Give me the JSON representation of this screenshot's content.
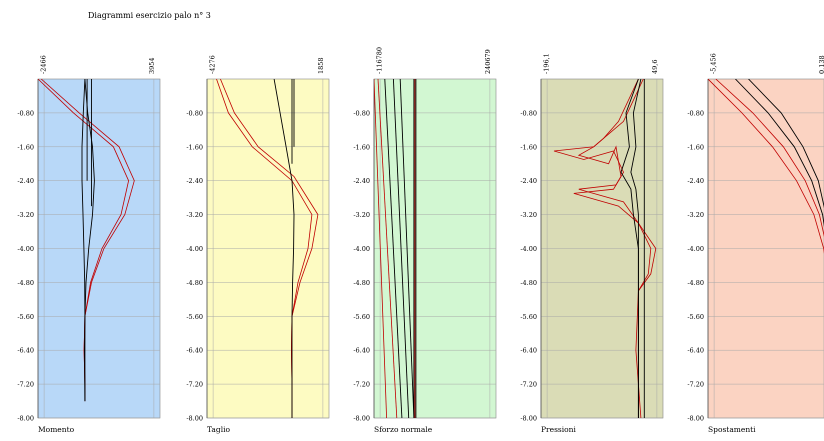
{
  "title": "Diagrammi esercizio palo n° 3",
  "chart_data": [
    {
      "type": "line",
      "xlabel": "Momento",
      "xtick_labels": [
        "-2466",
        "3954"
      ],
      "xlim": [
        -2466,
        3954
      ],
      "ylim": [
        0,
        -8.0
      ],
      "yticks": [
        "-0.80",
        "-1.60",
        "-2.40",
        "-3.20",
        "-4.00",
        "-4.80",
        "-5.60",
        "-6.40",
        "-7.20",
        "-8.00"
      ],
      "grid": true,
      "background": "#b8d8f8",
      "series": [
        {
          "color": "#c00000",
          "points": [
            [
              -2466,
              0
            ],
            [
              -600,
              -0.8
            ],
            [
              1500,
              -1.6
            ],
            [
              2300,
              -2.4
            ],
            [
              1900,
              -3.2
            ],
            [
              900,
              -4.0
            ],
            [
              300,
              -4.8
            ],
            [
              0,
              -5.6
            ],
            [
              -40,
              -6.4
            ],
            [
              0,
              -7.2
            ],
            [
              0,
              -7.6
            ]
          ]
        },
        {
          "color": "#c00000",
          "points": [
            [
              -2300,
              0
            ],
            [
              -300,
              -0.8
            ],
            [
              1800,
              -1.6
            ],
            [
              2600,
              -2.4
            ],
            [
              2100,
              -3.2
            ],
            [
              1000,
              -4.0
            ],
            [
              350,
              -4.8
            ],
            [
              0,
              -5.6
            ],
            [
              -40,
              -6.4
            ],
            [
              0,
              -7.2
            ],
            [
              0,
              -7.6
            ]
          ]
        },
        {
          "color": "#000000",
          "points": [
            [
              0,
              0
            ],
            [
              150,
              -0.8
            ],
            [
              400,
              -1.6
            ],
            [
              500,
              -2.4
            ],
            [
              400,
              -3.2
            ],
            [
              200,
              -4.0
            ],
            [
              60,
              -4.8
            ],
            [
              0,
              -5.6
            ],
            [
              -20,
              -6.4
            ],
            [
              0,
              -7.6
            ]
          ]
        },
        {
          "color": "#000000",
          "points": [
            [
              0,
              0
            ],
            [
              -80,
              -0.8
            ],
            [
              -150,
              -1.6
            ],
            [
              -150,
              -2.4
            ],
            [
              -100,
              -3.2
            ],
            [
              -50,
              -4.0
            ],
            [
              -10,
              -4.8
            ],
            [
              0,
              -5.6
            ],
            [
              0,
              -7.6
            ]
          ]
        },
        {
          "color": "#000000",
          "points": [
            [
              120,
              0
            ],
            [
              120,
              -2.4
            ]
          ]
        },
        {
          "color": "#000000",
          "points": [
            [
              350,
              0
            ],
            [
              350,
              -3.0
            ]
          ]
        }
      ]
    },
    {
      "type": "line",
      "xlabel": "Taglio",
      "xtick_labels": [
        "-4276",
        "1858"
      ],
      "xlim": [
        -4276,
        1858
      ],
      "ylim": [
        0,
        -8.0
      ],
      "yticks": [
        "-0.80",
        "-1.60",
        "-2.40",
        "-3.20",
        "-4.00",
        "-4.80",
        "-5.60",
        "-6.40",
        "-7.20",
        "-8.00"
      ],
      "grid": true,
      "background": "#fdfbc2",
      "series": [
        {
          "color": "#c00000",
          "points": [
            [
              -3800,
              0
            ],
            [
              -3200,
              -0.8
            ],
            [
              -2000,
              -1.6
            ],
            [
              0,
              -2.4
            ],
            [
              1000,
              -3.2
            ],
            [
              800,
              -4.0
            ],
            [
              300,
              -4.8
            ],
            [
              0,
              -5.6
            ],
            [
              -30,
              -6.4
            ],
            [
              0,
              -7.2
            ],
            [
              0,
              -8.0
            ]
          ]
        },
        {
          "color": "#c00000",
          "points": [
            [
              -3600,
              0
            ],
            [
              -2900,
              -0.8
            ],
            [
              -1700,
              -1.6
            ],
            [
              100,
              -2.3
            ],
            [
              1300,
              -3.2
            ],
            [
              1000,
              -4.0
            ],
            [
              400,
              -4.8
            ],
            [
              0,
              -5.6
            ],
            [
              -30,
              -6.4
            ],
            [
              0,
              -7.2
            ],
            [
              0,
              -8.0
            ]
          ]
        },
        {
          "color": "#000000",
          "points": [
            [
              -900,
              0
            ],
            [
              -600,
              -0.8
            ],
            [
              -300,
              -1.6
            ],
            [
              0,
              -2.4
            ],
            [
              100,
              -3.2
            ],
            [
              80,
              -4.0
            ],
            [
              30,
              -4.8
            ],
            [
              0,
              -5.6
            ],
            [
              0,
              -8.0
            ]
          ]
        },
        {
          "color": "#000000",
          "points": [
            [
              0,
              0
            ],
            [
              0,
              -2.0
            ]
          ]
        },
        {
          "color": "#000000",
          "points": [
            [
              100,
              0
            ],
            [
              100,
              -1.6
            ]
          ]
        }
      ]
    },
    {
      "type": "line",
      "xlabel": "Sforzo normale",
      "xtick_labels": [
        "-116780",
        "240679"
      ],
      "xlim": [
        -116780,
        240679
      ],
      "ylim": [
        0,
        -8.0
      ],
      "yticks": [
        "-0.80",
        "-1.60",
        "-2.40",
        "-3.20",
        "-4.00",
        "-4.80",
        "-5.60",
        "-6.40",
        "-7.20",
        "-8.00"
      ],
      "grid": true,
      "background": "#d2f7d2",
      "series": [
        {
          "color": "#c00000",
          "points": [
            [
              -116780,
              0
            ],
            [
              -80000,
              -8.0
            ]
          ]
        },
        {
          "color": "#c00000",
          "points": [
            [
              -105000,
              0
            ],
            [
              -50000,
              -8.0
            ]
          ]
        },
        {
          "color": "#000000",
          "points": [
            [
              -85000,
              0
            ],
            [
              -35000,
              -8.0
            ]
          ]
        },
        {
          "color": "#000000",
          "points": [
            [
              -60000,
              0
            ],
            [
              -15000,
              -8.0
            ]
          ]
        },
        {
          "color": "#000000",
          "points": [
            [
              -40000,
              0
            ],
            [
              0,
              -8.0
            ]
          ]
        },
        {
          "color": "#000000",
          "points": [
            [
              0,
              0
            ],
            [
              0,
              -8.0
            ]
          ]
        },
        {
          "color": "#c00000",
          "points": [
            [
              3000,
              0
            ],
            [
              3000,
              -8.0
            ]
          ]
        },
        {
          "color": "#000000",
          "points": [
            [
              6000,
              0
            ],
            [
              6000,
              -8.0
            ]
          ]
        }
      ]
    },
    {
      "type": "line",
      "xlabel": "Pressioni",
      "xtick_labels": [
        "-196,1",
        "49,6"
      ],
      "xlim": [
        -196.1,
        49.6
      ],
      "ylim": [
        0,
        -8.0
      ],
      "yticks": [
        "-0.80",
        "-1.60",
        "-2.40",
        "-3.20",
        "-4.00",
        "-4.80",
        "-5.60",
        "-6.40",
        "-7.20",
        "-8.00"
      ],
      "grid": true,
      "background": "#dadcb6",
      "series": [
        {
          "color": "#c00000",
          "points": [
            [
              0,
              0
            ],
            [
              -40,
              -1.0
            ],
            [
              -70,
              -1.4
            ],
            [
              -90,
              -1.6
            ],
            [
              -120,
              -1.8
            ],
            [
              -60,
              -2.0
            ],
            [
              -45,
              -1.6
            ],
            [
              -35,
              -2.3
            ],
            [
              -50,
              -2.6
            ],
            [
              -130,
              -2.7
            ],
            [
              -40,
              -3.0
            ],
            [
              0,
              -3.4
            ],
            [
              25,
              -4.0
            ],
            [
              20,
              -4.6
            ],
            [
              0,
              -5.0
            ],
            [
              0,
              -8.0
            ]
          ]
        },
        {
          "color": "#c00000",
          "points": [
            [
              10,
              0
            ],
            [
              -30,
              -1.0
            ],
            [
              -70,
              -1.4
            ],
            [
              -90,
              -1.6
            ],
            [
              -170,
              -1.7
            ],
            [
              -110,
              -1.9
            ],
            [
              -50,
              -1.7
            ],
            [
              -30,
              -2.2
            ],
            [
              -45,
              -2.5
            ],
            [
              -120,
              -2.6
            ],
            [
              -30,
              -2.9
            ],
            [
              0,
              -3.4
            ],
            [
              35,
              -4.0
            ],
            [
              25,
              -4.6
            ],
            [
              0,
              -5.0
            ],
            [
              -5,
              -6.4
            ],
            [
              5,
              -8.0
            ]
          ]
        },
        {
          "color": "#000000",
          "points": [
            [
              0,
              0
            ],
            [
              -25,
              -0.8
            ],
            [
              -18,
              -1.6
            ],
            [
              -35,
              -2.2
            ],
            [
              -15,
              -2.6
            ],
            [
              -10,
              -3.2
            ],
            [
              0,
              -4.0
            ],
            [
              0,
              -8.0
            ]
          ]
        },
        {
          "color": "#000000",
          "points": [
            [
              5,
              0
            ],
            [
              -10,
              -0.8
            ],
            [
              -5,
              -1.6
            ],
            [
              -15,
              -2.2
            ],
            [
              -5,
              -2.6
            ],
            [
              0,
              -3.2
            ],
            [
              0,
              -8.0
            ]
          ]
        },
        {
          "color": "#000000",
          "points": [
            [
              12,
              0
            ],
            [
              12,
              -8.0
            ]
          ]
        }
      ]
    },
    {
      "type": "line",
      "xlabel": "Spostamenti",
      "xtick_labels": [
        "-5,456",
        "0,138"
      ],
      "xlim": [
        -5.456,
        0.138
      ],
      "ylim": [
        0,
        -8.0
      ],
      "yticks": [
        "-0.80",
        "-1.60",
        "-2.40",
        "-3.20",
        "-4.00",
        "-4.80",
        "-5.60",
        "-6.40",
        "-7.20",
        "-8.00"
      ],
      "grid": true,
      "background": "#fbd3c2",
      "series": [
        {
          "color": "#c00000",
          "points": [
            [
              -5.456,
              0
            ],
            [
              -3.9,
              -0.8
            ],
            [
              -2.5,
              -1.6
            ],
            [
              -1.4,
              -2.4
            ],
            [
              -0.6,
              -3.2
            ],
            [
              -0.15,
              -4.0
            ],
            [
              0.05,
              -4.8
            ],
            [
              0.1,
              -5.6
            ],
            [
              0.05,
              -6.4
            ],
            [
              0,
              -7.2
            ],
            [
              -0.02,
              -8.0
            ]
          ]
        },
        {
          "color": "#c00000",
          "points": [
            [
              -5.1,
              0
            ],
            [
              -3.4,
              -0.8
            ],
            [
              -2.0,
              -1.6
            ],
            [
              -1.0,
              -2.4
            ],
            [
              -0.35,
              -3.2
            ],
            [
              0,
              -4.0
            ],
            [
              0.1,
              -4.8
            ],
            [
              0.12,
              -5.6
            ],
            [
              0.06,
              -6.4
            ],
            [
              0,
              -7.2
            ],
            [
              -0.02,
              -8.0
            ]
          ]
        },
        {
          "color": "#000000",
          "points": [
            [
              -4.2,
              0
            ],
            [
              -2.7,
              -0.8
            ],
            [
              -1.5,
              -1.6
            ],
            [
              -0.7,
              -2.4
            ],
            [
              -0.2,
              -3.2
            ],
            [
              0.03,
              -4.0
            ],
            [
              0.1,
              -4.8
            ],
            [
              0.1,
              -5.6
            ],
            [
              0.04,
              -6.4
            ],
            [
              0,
              -7.2
            ],
            [
              0,
              -8.0
            ]
          ]
        },
        {
          "color": "#000000",
          "points": [
            [
              -3.6,
              0
            ],
            [
              -2.1,
              -0.8
            ],
            [
              -1.1,
              -1.6
            ],
            [
              -0.4,
              -2.4
            ],
            [
              -0.05,
              -3.2
            ],
            [
              0.08,
              -4.0
            ],
            [
              0.12,
              -4.8
            ],
            [
              0.1,
              -5.6
            ],
            [
              0.05,
              -6.4
            ],
            [
              0,
              -7.2
            ],
            [
              0,
              -8.0
            ]
          ]
        }
      ]
    }
  ]
}
